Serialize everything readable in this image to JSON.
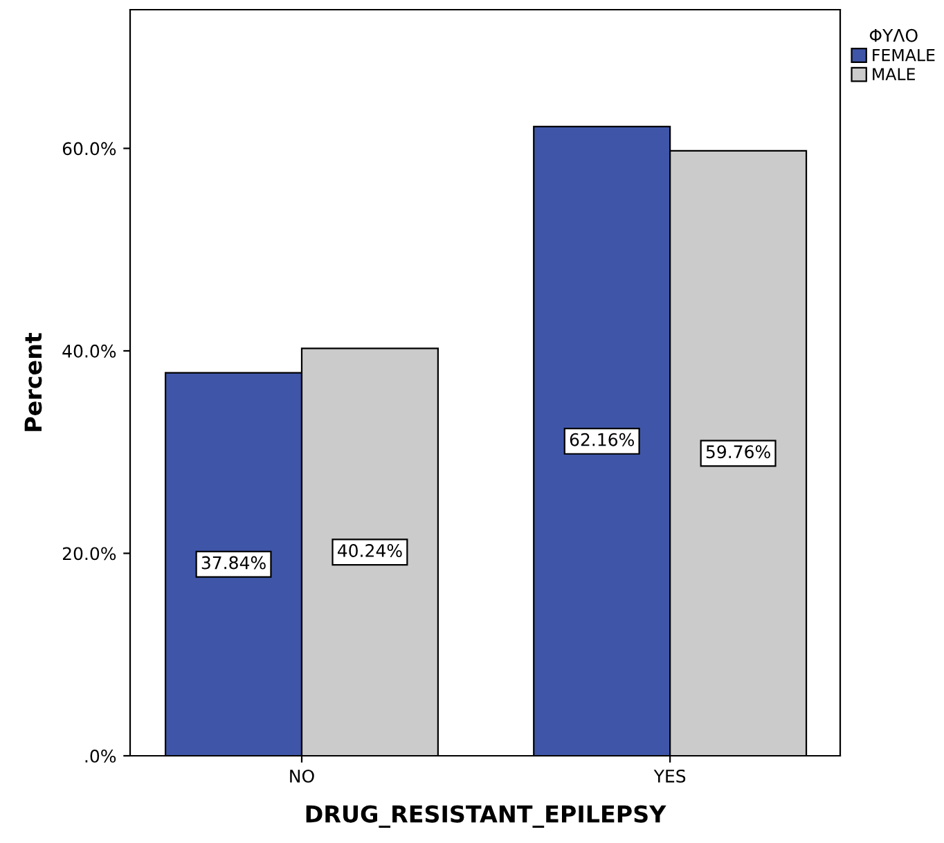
{
  "chart_data": {
    "type": "bar",
    "xlabel": "DRUG_RESISTANT_EPILEPSY",
    "ylabel": "Percent",
    "legend_title": "ΦΥΛΟ",
    "categories": [
      "NO",
      "YES"
    ],
    "series": [
      {
        "name": "FEMALE",
        "color": "#3f56a8",
        "values": [
          37.84,
          62.16
        ],
        "value_labels": [
          "37.84%",
          "62.16%"
        ]
      },
      {
        "name": "MALE",
        "color": "#cbcbcb",
        "values": [
          40.24,
          59.76
        ],
        "value_labels": [
          "40.24%",
          "59.76%"
        ]
      }
    ],
    "ylim": [
      0,
      73.7
    ],
    "yticks": [
      {
        "value": 0,
        "label": ".0%"
      },
      {
        "value": 20,
        "label": "20.0%"
      },
      {
        "value": 40,
        "label": "40.0%"
      },
      {
        "value": 60,
        "label": "60.0%"
      }
    ],
    "grid": false,
    "legend": "top right"
  }
}
